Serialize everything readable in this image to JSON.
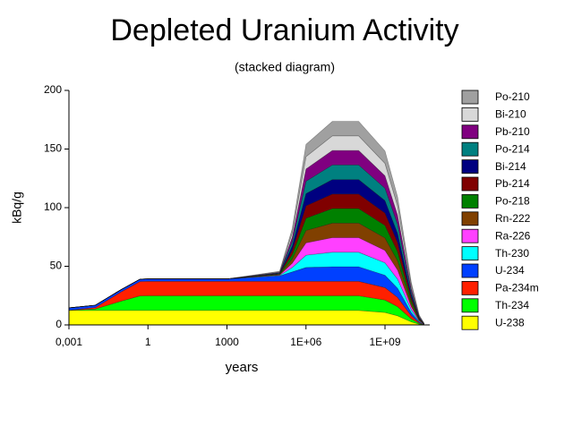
{
  "chart_data": {
    "type": "stacked-area",
    "title": "Depleted Uranium Activity",
    "subtitle": "(stacked diagram)",
    "x_label": "years",
    "y_label": "kBq/g",
    "x_scale": "log",
    "x": [
      0.001,
      0.01,
      0.1,
      0.5,
      1,
      1000,
      100000,
      300000,
      1000000,
      10000000,
      100000000,
      1000000000,
      3000000000,
      10000000000,
      20000000000,
      30000000000
    ],
    "xlim": [
      0.001,
      50000000000
    ],
    "xticks": [
      {
        "value": 0.001,
        "label": "0,001"
      },
      1,
      1000,
      {
        "value": 1000000,
        "label": "1E+06"
      },
      {
        "value": 1000000000,
        "label": "1E+09"
      }
    ],
    "ylim": [
      0,
      200
    ],
    "yticks": [
      0,
      50,
      100,
      150,
      200
    ],
    "legend": "right",
    "series": [
      {
        "name": "U-238",
        "color": "#ffff00",
        "values": [
          12.4,
          12.4,
          12.4,
          12.4,
          12.4,
          12.4,
          12.4,
          12.4,
          12.4,
          12.4,
          12.4,
          10.6,
          7.8,
          2.6,
          0.6,
          0.12
        ]
      },
      {
        "name": "Th-234",
        "color": "#00ff00",
        "values": [
          0.1,
          1.2,
          8,
          12.3,
          12.4,
          12.4,
          12.4,
          12.4,
          12.4,
          12.4,
          12.4,
          10.6,
          7.8,
          2.6,
          0.6,
          0.12
        ]
      },
      {
        "name": "Pa-234m",
        "color": "#ff2000",
        "values": [
          0.1,
          1.2,
          8,
          12.3,
          12.4,
          12.4,
          12.4,
          12.4,
          12.4,
          12.4,
          12.4,
          10.6,
          7.8,
          2.6,
          0.6,
          0.12
        ]
      },
      {
        "name": "U-234",
        "color": "#0040ff",
        "values": [
          2,
          2,
          2,
          2,
          2,
          2,
          4.6,
          8,
          11.8,
          12.4,
          12.4,
          10.6,
          7.8,
          2.6,
          0.6,
          0.12
        ]
      },
      {
        "name": "Th-230",
        "color": "#00ffff",
        "values": [
          0,
          0,
          0,
          0,
          0,
          0,
          0.4,
          3.7,
          10.5,
          12.4,
          12.4,
          10.6,
          7.8,
          2.6,
          0.6,
          0.12
        ]
      },
      {
        "name": "Ra-226",
        "color": "#ff40ff",
        "values": [
          0,
          0,
          0,
          0,
          0,
          0,
          0.4,
          3.7,
          10.5,
          12.4,
          12.4,
          10.6,
          7.8,
          2.6,
          0.6,
          0.12
        ]
      },
      {
        "name": "Rn-222",
        "color": "#804000",
        "values": [
          0,
          0,
          0,
          0,
          0,
          0,
          0.4,
          3.7,
          10.5,
          12.4,
          12.4,
          10.6,
          7.8,
          2.6,
          0.6,
          0.12
        ]
      },
      {
        "name": "Po-218",
        "color": "#008000",
        "values": [
          0,
          0,
          0,
          0,
          0,
          0,
          0.4,
          3.7,
          10.5,
          12.4,
          12.4,
          10.6,
          7.8,
          2.6,
          0.6,
          0.12
        ]
      },
      {
        "name": "Pb-214",
        "color": "#800000",
        "values": [
          0,
          0,
          0,
          0,
          0,
          0,
          0.4,
          3.7,
          10.5,
          12.4,
          12.4,
          10.6,
          7.8,
          2.6,
          0.6,
          0.12
        ]
      },
      {
        "name": "Bi-214",
        "color": "#000080",
        "values": [
          0,
          0,
          0,
          0,
          0,
          0,
          0.4,
          3.7,
          10.5,
          12.4,
          12.4,
          10.6,
          7.8,
          2.6,
          0.6,
          0.12
        ]
      },
      {
        "name": "Po-214",
        "color": "#008080",
        "values": [
          0,
          0,
          0,
          0,
          0,
          0,
          0.4,
          3.7,
          10.5,
          12.4,
          12.4,
          10.6,
          7.8,
          2.6,
          0.6,
          0.12
        ]
      },
      {
        "name": "Pb-210",
        "color": "#800080",
        "values": [
          0,
          0,
          0,
          0,
          0,
          0,
          0.4,
          3.7,
          10.5,
          12.4,
          12.4,
          10.6,
          7.8,
          2.6,
          0.6,
          0.12
        ]
      },
      {
        "name": "Bi-210",
        "color": "#d8d8d8",
        "values": [
          0,
          0,
          0,
          0,
          0,
          0,
          0.4,
          3.7,
          10.5,
          12.4,
          12.4,
          10.6,
          7.8,
          2.6,
          0.6,
          0.12
        ]
      },
      {
        "name": "Po-210",
        "color": "#a0a0a0",
        "values": [
          0,
          0,
          0,
          0,
          0,
          0,
          0.4,
          3.7,
          10.5,
          12.4,
          12.4,
          10.6,
          7.8,
          2.6,
          0.6,
          0.12
        ]
      }
    ]
  }
}
